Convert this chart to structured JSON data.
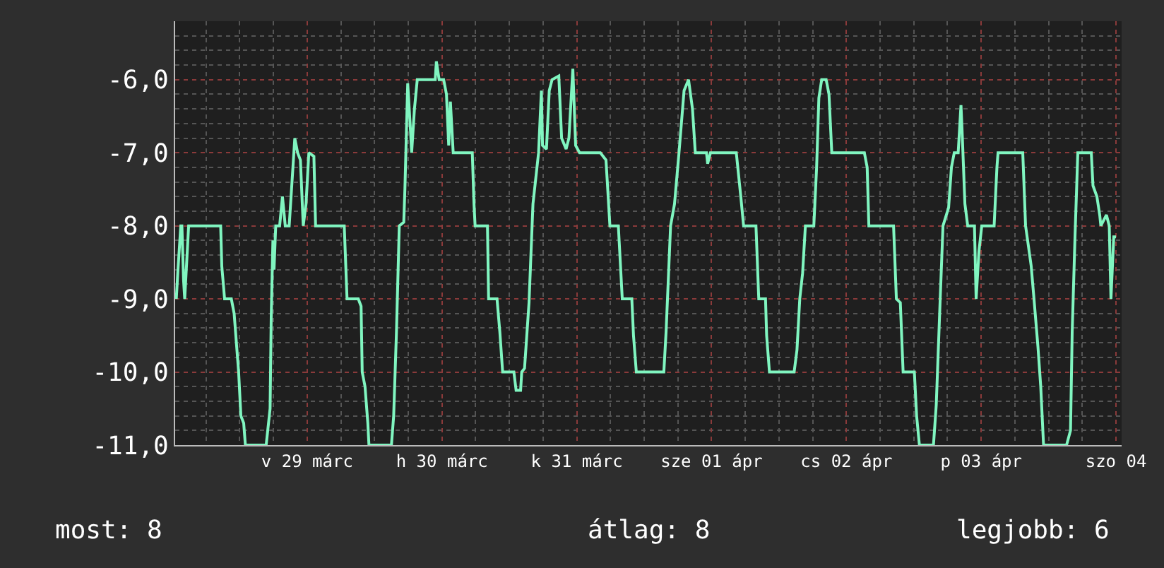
{
  "chart_data": {
    "type": "line",
    "x": [
      "--03-28T12:42",
      "--03-28T13:00",
      "--03-28T13:30",
      "--03-28T13:42",
      "--03-28T14:00",
      "--03-28T14:12",
      "--03-28T14:54",
      "--03-28T20:36",
      "--03-28T20:48",
      "--03-28T21:18",
      "--03-28T22:30",
      "--03-28T23:00",
      "--03-28T23:48",
      "--03-29T00:12",
      "--03-29T00:42",
      "--03-29T01:00",
      "--03-29T04:42",
      "--03-29T05:24",
      "--03-29T05:36",
      "--03-29T05:54",
      "--03-29T06:06",
      "--03-29T06:24",
      "--03-29T07:06",
      "--03-29T07:36",
      "--03-29T08:06",
      "--03-29T08:48",
      "--03-29T09:48",
      "--03-29T10:18",
      "--03-29T10:48",
      "--03-29T11:18",
      "--03-29T11:48",
      "--03-29T12:18",
      "--03-29T13:12",
      "--03-29T13:30",
      "--03-29T18:36",
      "--03-29T19:06",
      "--03-29T21:06",
      "--03-29T21:36",
      "--03-29T21:48",
      "--03-29T22:18",
      "--03-29T22:48",
      "--03-29T23:00",
      "--03-30T03:00",
      "--03-30T03:24",
      "--03-30T03:54",
      "--03-30T04:24",
      "--03-30T05:12",
      "--03-30T05:24",
      "--03-30T05:54",
      "--03-30T06:24",
      "--03-30T06:36",
      "--03-30T07:06",
      "--03-30T07:36",
      "--03-30T10:48",
      "--03-30T11:00",
      "--03-30T11:30",
      "--03-30T12:18",
      "--03-30T12:48",
      "--03-30T13:12",
      "--03-30T13:30",
      "--03-30T14:00",
      "--03-30T17:24",
      "--03-30T17:42",
      "--03-30T17:54",
      "--03-30T20:06",
      "--03-30T20:18",
      "--03-30T21:48",
      "--03-30T22:18",
      "--03-30T22:48",
      "--03-31T00:48",
      "--03-31T01:12",
      "--03-31T02:00",
      "--03-31T02:12",
      "--03-31T02:42",
      "--03-31T03:30",
      "--03-31T04:12",
      "--03-31T05:12",
      "--03-31T05:42",
      "--03-31T05:54",
      "--03-31T06:36",
      "--03-31T07:06",
      "--03-31T07:36",
      "--03-31T08:48",
      "--03-31T09:18",
      "--03-31T10:06",
      "--03-31T10:36",
      "--03-31T11:18",
      "--03-31T11:48",
      "--03-31T12:30",
      "--03-31T16:12",
      "--03-31T17:12",
      "--03-31T17:54",
      "--03-31T19:24",
      "--03-31T20:06",
      "--03-31T21:48",
      "--03-31T22:06",
      "--03-31T22:36",
      "--04-01T03:30",
      "--04-01T03:54",
      "--04-01T04:42",
      "--04-01T05:24",
      "--04-01T06:12",
      "--04-01T07:06",
      "--04-01T07:54",
      "--04-01T08:36",
      "--04-01T09:06",
      "--04-01T11:06",
      "--04-01T11:18",
      "--04-01T11:48",
      "--04-01T16:24",
      "--04-01T17:12",
      "--04-01T17:42",
      "--04-01T19:54",
      "--04-01T20:24",
      "--04-01T21:36",
      "--04-01T21:48",
      "--04-01T22:18",
      "--04-02T02:42",
      "--04-02T03:12",
      "--04-02T03:42",
      "--04-02T04:12",
      "--04-02T04:42",
      "--04-02T06:12",
      "--04-02T06:42",
      "--04-02T07:06",
      "--04-02T07:36",
      "--04-02T08:24",
      "--04-02T08:54",
      "--04-02T09:24",
      "--04-02T15:12",
      "--04-02T15:42",
      "--04-02T16:00",
      "--04-02T20:24",
      "--04-02T20:54",
      "--04-02T21:36",
      "--04-02T22:06",
      "--04-03T00:06",
      "--04-03T00:30",
      "--04-03T01:00",
      "--04-03T03:30",
      "--04-03T04:00",
      "--04-03T04:42",
      "--04-03T05:12",
      "--04-03T06:12",
      "--04-03T06:42",
      "--04-03T07:12",
      "--04-03T07:54",
      "--04-03T08:24",
      "--04-03T08:36",
      "--04-03T09:06",
      "--04-03T09:36",
      "--04-03T10:48",
      "--04-03T11:06",
      "--04-03T11:36",
      "--04-03T12:06",
      "--04-03T14:18",
      "--04-03T14:48",
      "--04-03T15:00",
      "--04-03T19:24",
      "--04-03T19:54",
      "--04-03T20:54",
      "--04-03T21:24",
      "--04-03T22:06",
      "--04-03T22:36",
      "--04-03T23:06",
      "--04-04T03:12",
      "--04-04T03:54",
      "--04-04T04:12",
      "--04-04T04:42",
      "--04-04T05:12",
      "--04-04T07:36",
      "--04-04T07:54",
      "--04-04T08:36",
      "--04-04T09:06",
      "--04-04T09:18",
      "--04-04T10:18",
      "--04-04T10:48",
      "--04-04T11:06",
      "--04-04T11:36",
      "--04-04T12:00"
    ],
    "series": [
      {
        "color": "#80f5c0",
        "values": [
          -9.0,
          -8.6,
          -8.0,
          -8.0,
          -8.75,
          -9.0,
          -8.0,
          -8.0,
          -8.55,
          -9.0,
          -9.0,
          -9.2,
          -10.0,
          -10.6,
          -10.7,
          -11.0,
          -11.0,
          -10.5,
          -9.25,
          -8.2,
          -8.6,
          -8.0,
          -8.0,
          -7.6,
          -8.0,
          -8.0,
          -6.8,
          -7.0,
          -7.1,
          -8.0,
          -7.7,
          -7.0,
          -7.05,
          -8.0,
          -8.0,
          -9.0,
          -9.0,
          -9.1,
          -10.0,
          -10.2,
          -10.7,
          -11.0,
          -11.0,
          -10.6,
          -9.45,
          -8.0,
          -7.95,
          -7.5,
          -6.05,
          -6.7,
          -7.0,
          -6.4,
          -6.0,
          -6.0,
          -5.75,
          -6.0,
          -6.0,
          -6.2,
          -6.9,
          -6.3,
          -7.0,
          -7.0,
          -7.7,
          -8.0,
          -8.0,
          -9.0,
          -9.0,
          -9.45,
          -10.0,
          -10.0,
          -10.25,
          -10.25,
          -10.0,
          -9.95,
          -9.05,
          -7.7,
          -7.0,
          -6.15,
          -6.9,
          -6.95,
          -6.15,
          -6.0,
          -5.95,
          -6.8,
          -6.95,
          -6.8,
          -5.85,
          -6.9,
          -7.0,
          -7.0,
          -7.1,
          -8.0,
          -8.0,
          -9.0,
          -9.0,
          -9.5,
          -10.0,
          -10.0,
          -9.45,
          -8.0,
          -7.7,
          -7.0,
          -6.15,
          -6.0,
          -6.4,
          -7.0,
          -7.0,
          -7.15,
          -7.0,
          -7.0,
          -7.6,
          -8.0,
          -8.0,
          -9.0,
          -9.0,
          -9.5,
          -10.0,
          -10.0,
          -9.7,
          -9.0,
          -8.65,
          -8.0,
          -8.0,
          -7.2,
          -6.25,
          -6.0,
          -6.0,
          -6.2,
          -7.0,
          -7.0,
          -7.2,
          -8.0,
          -8.0,
          -9.0,
          -9.05,
          -10.0,
          -10.0,
          -10.6,
          -11.0,
          -11.0,
          -10.45,
          -9.0,
          -8.0,
          -7.75,
          -7.2,
          -7.0,
          -7.0,
          -6.35,
          -6.7,
          -7.7,
          -8.0,
          -8.0,
          -9.0,
          -8.35,
          -8.0,
          -8.0,
          -7.2,
          -7.0,
          -7.0,
          -8.0,
          -8.55,
          -9.0,
          -9.65,
          -10.2,
          -11.0,
          -11.0,
          -10.8,
          -9.45,
          -8.15,
          -7.0,
          -7.0,
          -7.45,
          -7.6,
          -7.85,
          -8.0,
          -7.85,
          -8.0,
          -9.0,
          -8.15,
          -8.15
        ]
      }
    ],
    "xlim": [
      "--03-28T12:30",
      "--04-04T13:00"
    ],
    "xticks": [
      {
        "value": "--03-29T12:00",
        "label": "v 29 márc"
      },
      {
        "value": "--03-30T12:00",
        "label": "h 30 márc"
      },
      {
        "value": "--03-31T12:00",
        "label": "k 31 márc"
      },
      {
        "value": "--04-01T12:00",
        "label": "sze 01 ápr"
      },
      {
        "value": "--04-02T12:00",
        "label": "cs 02 ápr"
      },
      {
        "value": "--04-03T12:00",
        "label": "p 03 ápr"
      },
      {
        "value": "--04-04T12:00",
        "label": "szo 04"
      }
    ],
    "ylim": [
      -11.0,
      -5.2
    ],
    "yticks": [
      {
        "value": -11,
        "label": "-11,0"
      },
      {
        "value": -10,
        "label": "-10,0"
      },
      {
        "value": -9,
        "label": "-9,0"
      },
      {
        "value": -8,
        "label": "-8,0"
      },
      {
        "value": -7,
        "label": "-7,0"
      },
      {
        "value": -6,
        "label": "-6,0"
      }
    ],
    "grid": true,
    "annotations": [
      "most: 8",
      "átlag: 8",
      "legjobb: 6"
    ]
  }
}
